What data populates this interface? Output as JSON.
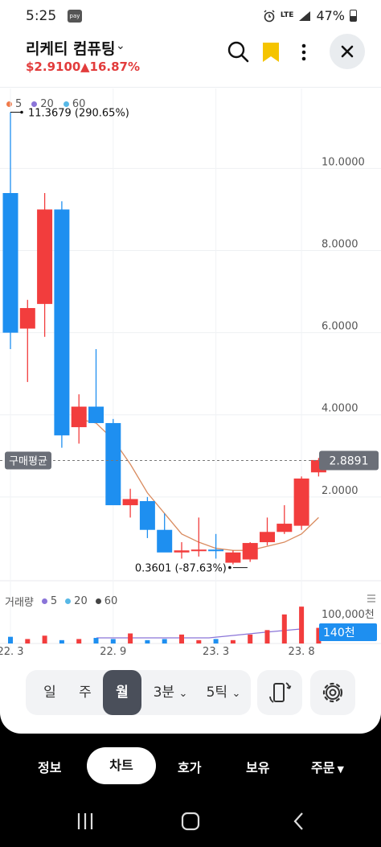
{
  "status_bar": {
    "time": "5:25",
    "pay_badge": "pay",
    "network": "LTE",
    "battery": "47%"
  },
  "header": {
    "stock_name": "리케티 컴퓨팅",
    "price": "$2.9100",
    "change": "▲16.87%",
    "icons": [
      "search-icon",
      "bookmark-icon",
      "more-icon",
      "close-icon"
    ],
    "accent_color": "#e23c3c",
    "bookmark_color": "#f5c400"
  },
  "chart_legend": [
    {
      "label": "5",
      "color": "#f07a4a"
    },
    {
      "label": "20",
      "color": "#8a74d8"
    },
    {
      "label": "60",
      "color": "#57b8e6"
    }
  ],
  "volume_legend": {
    "title": "거래량",
    "items": [
      {
        "label": "5",
        "color": "#8a74d8"
      },
      {
        "label": "20",
        "color": "#57b8e6"
      },
      {
        "label": "60",
        "color": "#444444"
      }
    ],
    "scale_label": "100,000천",
    "current_badge": "140천"
  },
  "chart_labels": {
    "max_annotation": "11.3679 (290.65%)",
    "min_annotation": "0.3601 (-87.63%)",
    "avg_label": "구매평균",
    "current_price_badge": "2.8891"
  },
  "chart_data": {
    "type": "candlestick",
    "interval": "monthly",
    "y_ticks": [
      "10.0000",
      "8.0000",
      "6.0000",
      "4.0000",
      "2.0000"
    ],
    "y_tick_values": [
      10,
      8,
      6,
      4,
      2
    ],
    "x_ticks": [
      "22. 3",
      "22. 9",
      "23. 3",
      "23. 8"
    ],
    "avg_price": 2.8891,
    "up_color": "#f23d3d",
    "down_color": "#1e8ff0",
    "candles": [
      {
        "o": 9.4,
        "h": 11.3679,
        "l": 5.6,
        "c": 6.0,
        "v": 6
      },
      {
        "o": 6.1,
        "h": 6.8,
        "l": 4.8,
        "c": 6.6,
        "v": 4
      },
      {
        "o": 6.7,
        "h": 9.4,
        "l": 5.9,
        "c": 9.0,
        "v": 7
      },
      {
        "o": 9.0,
        "h": 9.2,
        "l": 3.2,
        "c": 3.5,
        "v": 3
      },
      {
        "o": 3.7,
        "h": 4.5,
        "l": 3.3,
        "c": 4.2,
        "v": 4
      },
      {
        "o": 4.2,
        "h": 5.6,
        "l": 3.9,
        "c": 3.8,
        "v": 5
      },
      {
        "o": 3.8,
        "h": 3.9,
        "l": 1.9,
        "c": 1.8,
        "v": 4
      },
      {
        "o": 1.8,
        "h": 2.2,
        "l": 1.5,
        "c": 1.95,
        "v": 9
      },
      {
        "o": 1.9,
        "h": 2.0,
        "l": 1.0,
        "c": 1.2,
        "v": 3
      },
      {
        "o": 1.2,
        "h": 1.6,
        "l": 0.7,
        "c": 0.65,
        "v": 4
      },
      {
        "o": 0.65,
        "h": 0.9,
        "l": 0.5,
        "c": 0.7,
        "v": 8
      },
      {
        "o": 0.7,
        "h": 1.5,
        "l": 0.55,
        "c": 0.72,
        "v": 3
      },
      {
        "o": 0.72,
        "h": 1.1,
        "l": 0.5,
        "c": 0.7,
        "v": 4
      },
      {
        "o": 0.4,
        "h": 0.7,
        "l": 0.3601,
        "c": 0.65,
        "v": 3
      },
      {
        "o": 0.48,
        "h": 0.9,
        "l": 0.42,
        "c": 0.88,
        "v": 8
      },
      {
        "o": 0.9,
        "h": 1.5,
        "l": 0.82,
        "c": 1.15,
        "v": 12
      },
      {
        "o": 1.15,
        "h": 1.8,
        "l": 1.1,
        "c": 1.35,
        "v": 26
      },
      {
        "o": 1.3,
        "h": 2.5,
        "l": 1.2,
        "c": 2.45,
        "v": 33
      },
      {
        "o": 2.6,
        "h": 2.95,
        "l": 2.5,
        "c": 2.9,
        "v": 14
      }
    ],
    "ma5": [
      null,
      null,
      null,
      null,
      3.9,
      3.8,
      3.4,
      2.8,
      2.1,
      1.6,
      1.1,
      0.9,
      0.75,
      0.7,
      0.7,
      0.8,
      0.9,
      1.1,
      1.5
    ]
  },
  "period_tabs": {
    "items": [
      "일",
      "주",
      "월",
      "3분",
      "5틱"
    ],
    "active": "월"
  },
  "bottom_tabs": {
    "items": [
      "정보",
      "차트",
      "호가",
      "보유",
      "주문"
    ],
    "active": "차트"
  }
}
